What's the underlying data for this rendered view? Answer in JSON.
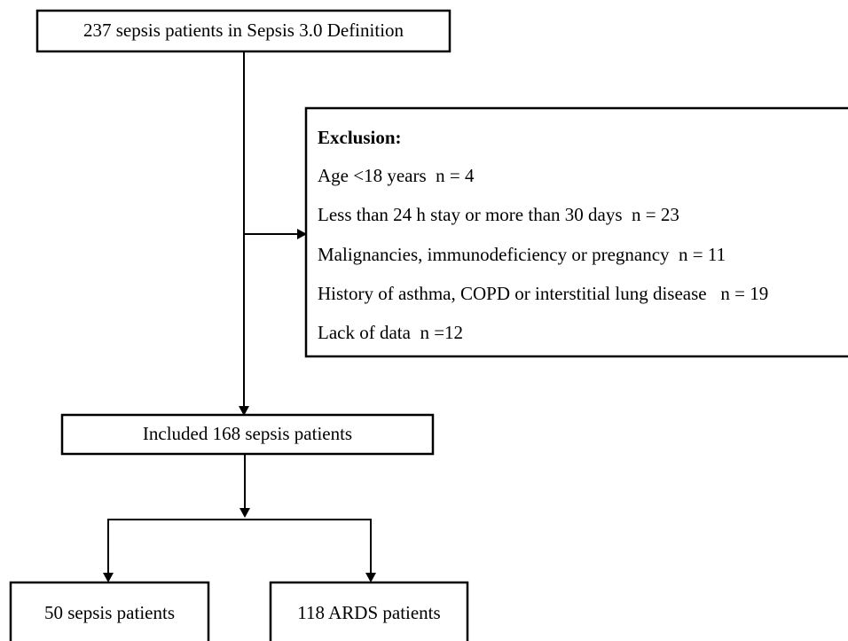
{
  "nodes": [
    {
      "label": "237 sepsis patients in Sepsis 3.0 Definition"
    },
    {
      "label": "Included 168 sepsis patients"
    },
    {
      "label": "50 sepsis patients"
    },
    {
      "label": "118 ARDS patients"
    }
  ],
  "exclusion": {
    "title": "Exclusion:",
    "items": [
      "Age <18 years  n = 4",
      "Less than 24 h stay or more than 30 days  n = 23",
      "Malignancies, immunodeficiency or pregnancy  n = 11",
      "History of asthma, COPD or interstitial lung disease   n = 19",
      "Lack of data  n =12"
    ]
  }
}
